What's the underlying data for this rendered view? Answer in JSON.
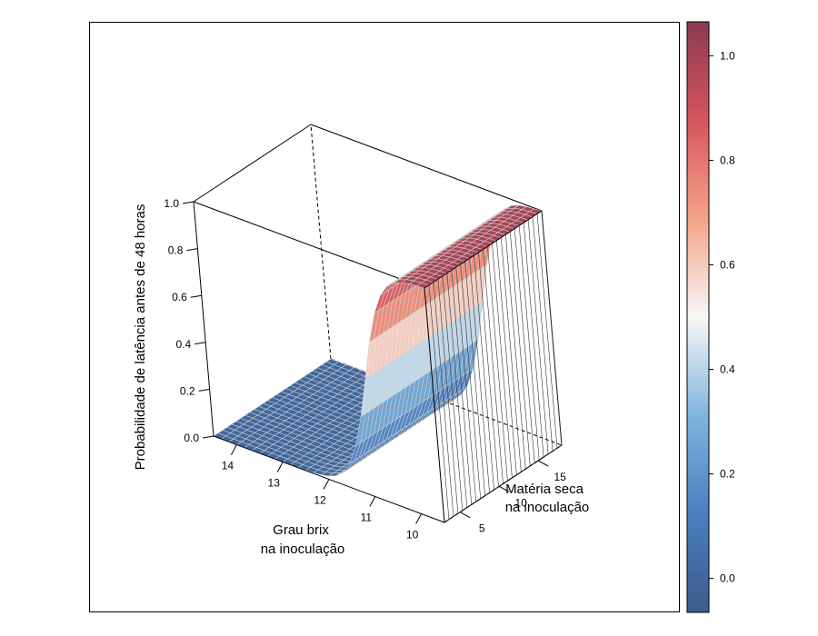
{
  "chart_data": {
    "type": "surface3d",
    "z_axis": {
      "label": "Probabilidade de latência antes de 48 horas",
      "ticks": [
        "0.0",
        "0.2",
        "0.4",
        "0.6",
        "0.8",
        "1.0"
      ],
      "range": [
        0,
        1
      ]
    },
    "x_axis": {
      "label_line1": "Grau brix",
      "label_line2": "na inoculação",
      "ticks": [
        "14",
        "13",
        "12",
        "11",
        "10"
      ],
      "range": [
        9.5,
        14.5
      ]
    },
    "y_axis": {
      "label_line1": "Matéria seca",
      "label_line2": "na inoculação",
      "ticks": [
        "5",
        "10",
        "15"
      ],
      "range": [
        3,
        18
      ]
    },
    "surface": {
      "model": "logistic",
      "description_values": {
        "at_brix_14": 0.02,
        "at_brix_12": 0.05,
        "at_brix_11": 0.5,
        "at_brix_10": 0.97,
        "at_brix_9.5": 0.99
      }
    },
    "colorbar": {
      "ticks": [
        "0.0",
        "0.2",
        "0.4",
        "0.6",
        "0.8",
        "1.0"
      ],
      "range": [
        -0.065,
        1.065
      ],
      "colors": [
        "#3b5b8a",
        "#4a7fc0",
        "#7fb5dc",
        "#f7f7f7",
        "#f4a487",
        "#d6545e",
        "#8b3a52"
      ]
    }
  }
}
